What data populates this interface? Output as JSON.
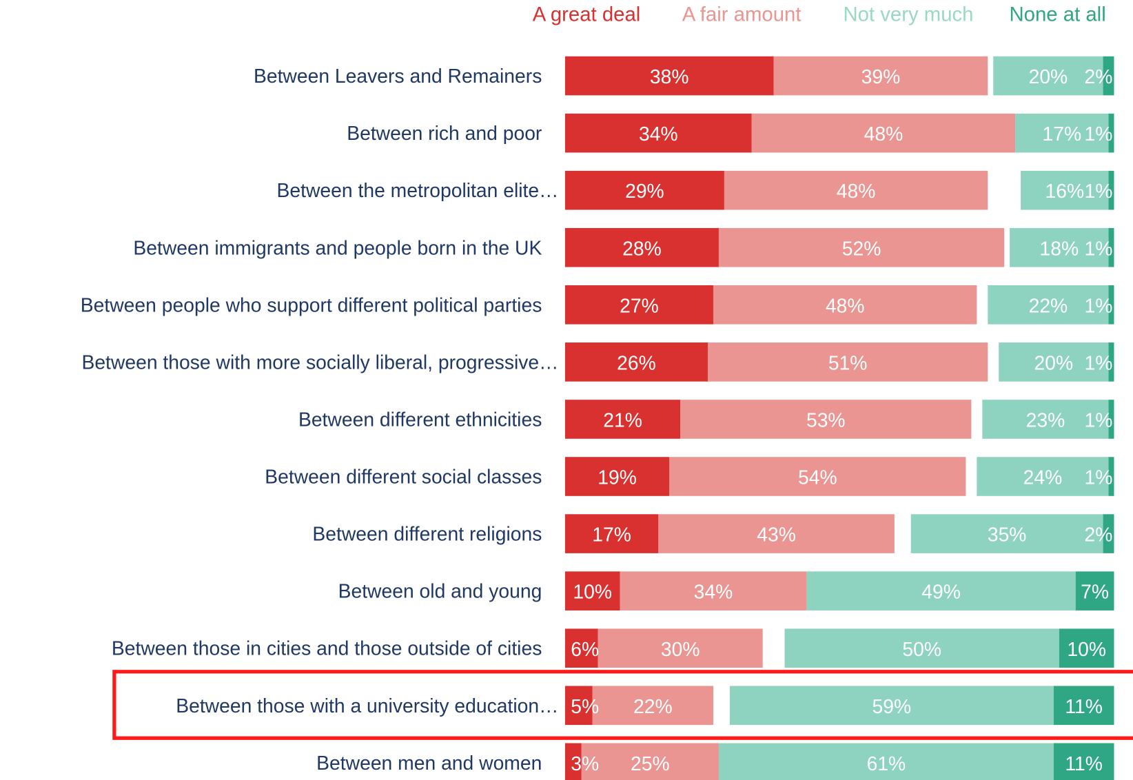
{
  "chart_data": {
    "type": "stacked-bar-horizontal",
    "categories": [
      "Between Leavers and Remainers",
      "Between rich and poor",
      "Between the metropolitan elite…",
      "Between immigrants and people born in the UK",
      "Between people who support different political parties",
      "Between those with more socially liberal, progressive…",
      "Between different ethnicities",
      "Between different social classes",
      "Between different religions",
      "Between old and young",
      "Between those in cities and those outside of cities",
      "Between those with a university education…",
      "Between men and women"
    ],
    "xlim": [
      0,
      100
    ],
    "series": [
      {
        "name": "A great deal",
        "color": "#d93030",
        "legend_color": "#d93030",
        "values": [
          38,
          34,
          29,
          28,
          27,
          26,
          21,
          19,
          17,
          10,
          6,
          5,
          3
        ],
        "value_labels": [
          "38%",
          "34%",
          "29%",
          "28%",
          "27%",
          "26%",
          "21%",
          "19%",
          "17%",
          "10%",
          "6%",
          "5%",
          "3%"
        ]
      },
      {
        "name": "A fair amount",
        "color": "#ea9591",
        "legend_color": "#ea9591",
        "values": [
          39,
          48,
          48,
          52,
          48,
          51,
          53,
          54,
          43,
          34,
          30,
          22,
          25
        ],
        "value_labels": [
          "39%",
          "48%",
          "48%",
          "52%",
          "48%",
          "51%",
          "53%",
          "54%",
          "43%",
          "34%",
          "30%",
          "22%",
          "25%"
        ]
      },
      {
        "name": "Not very much",
        "color": "#8dd3c0",
        "legend_color": "#9ad8c6",
        "values": [
          20,
          17,
          16,
          18,
          22,
          20,
          23,
          24,
          35,
          49,
          50,
          59,
          61
        ],
        "value_labels": [
          "20%",
          "17%",
          "16%",
          "18%",
          "22%",
          "20%",
          "23%",
          "24%",
          "35%",
          "49%",
          "50%",
          "59%",
          "61%"
        ]
      },
      {
        "name": "None at all",
        "color": "#2fa785",
        "legend_color": "#2fa77f",
        "values": [
          2,
          1,
          1,
          1,
          1,
          1,
          1,
          1,
          2,
          7,
          10,
          11,
          11
        ],
        "value_labels": [
          "2%",
          "1%",
          "1%",
          "1%",
          "1%",
          "1%",
          "1%",
          "1%",
          "2%",
          "7%",
          "10%",
          "11%",
          "11%"
        ]
      }
    ]
  }
}
